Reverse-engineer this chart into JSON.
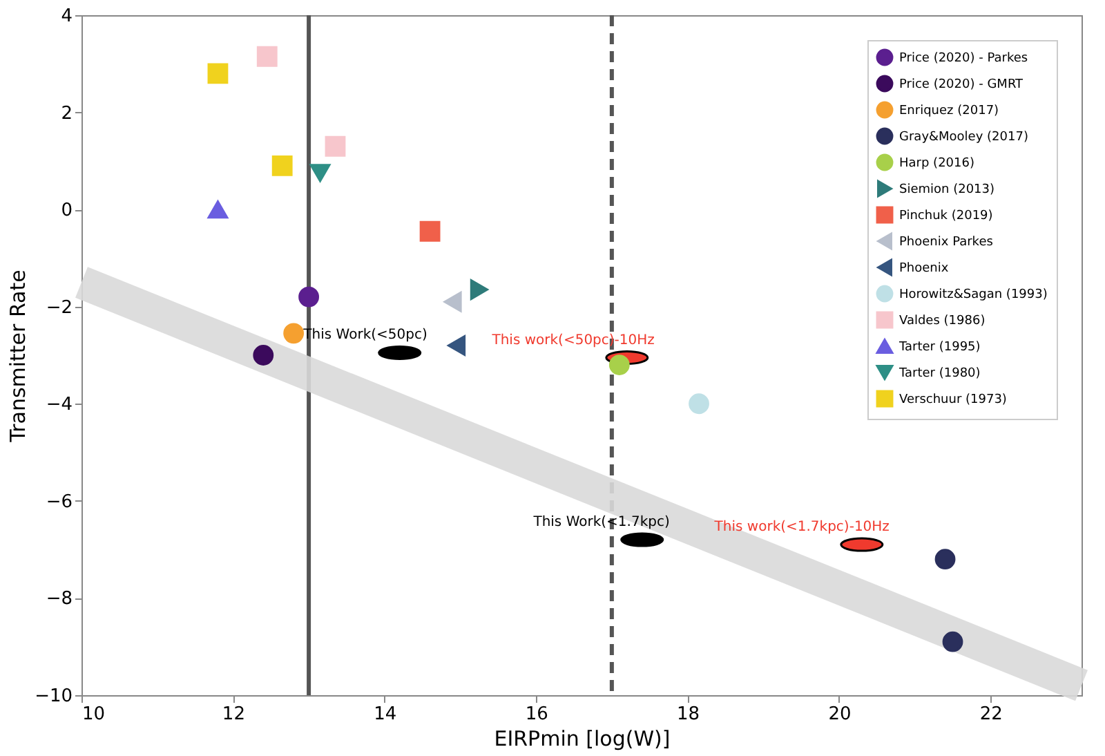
{
  "chart_data": {
    "type": "scatter",
    "xlabel": "EIRPmin [log(W)]",
    "ylabel": "Transmitter Rate",
    "xlim": [
      10,
      23.2
    ],
    "ylim": [
      -10,
      4
    ],
    "xticks": [
      10,
      12,
      14,
      16,
      18,
      20,
      22
    ],
    "yticks": [
      -10,
      -8,
      -6,
      -4,
      -2,
      0,
      2,
      4
    ],
    "grid": false,
    "legend": "top right",
    "ref_lines": [
      {
        "axis": "x",
        "value": 13,
        "color": "#555555",
        "line_style": "solid"
      },
      {
        "axis": "x",
        "value": 17,
        "color": "#555555",
        "line_style": "dashed"
      }
    ],
    "series": [
      {
        "type": "line",
        "color": "#d9d9d9",
        "x": [
          10,
          23.2
        ],
        "values": [
          -1.5,
          -9.8
        ],
        "marker": "none"
      },
      {
        "name": "Price (2020) - Parkes",
        "color": "#5b1f8f",
        "marker": "circle",
        "x": [
          13.0
        ],
        "values": [
          -1.8
        ]
      },
      {
        "name": "Price (2020) - GMRT",
        "color": "#3b0a5c",
        "marker": "circle",
        "x": [
          12.4
        ],
        "values": [
          -3.0
        ]
      },
      {
        "name": "Enriquez (2017)",
        "color": "#f5a030",
        "marker": "circle",
        "x": [
          12.8
        ],
        "values": [
          -2.55
        ]
      },
      {
        "name": "Gray&Mooley (2017)",
        "color": "#2a2f5c",
        "marker": "circle",
        "x": [
          21.4,
          21.5
        ],
        "values": [
          -7.2,
          -8.9
        ]
      },
      {
        "name": "Harp (2016)",
        "color": "#a8d04a",
        "marker": "circle",
        "x": [
          17.1
        ],
        "values": [
          -3.2
        ]
      },
      {
        "name": "Siemion (2013)",
        "color": "#2e7b7a",
        "marker": "triangle-right",
        "x": [
          15.25
        ],
        "values": [
          -1.65
        ]
      },
      {
        "name": "Pinchuk (2019)",
        "color": "#f0604a",
        "marker": "square",
        "x": [
          14.6
        ],
        "values": [
          -0.45
        ]
      },
      {
        "name": "Phoenix Parkes",
        "color": "#b8bfcc",
        "marker": "triangle-left",
        "x": [
          14.9
        ],
        "values": [
          -1.9
        ]
      },
      {
        "name": "Phoenix",
        "color": "#35557f",
        "marker": "triangle-left",
        "x": [
          14.95
        ],
        "values": [
          -2.8
        ]
      },
      {
        "name": "Horowitz&Sagan (1993)",
        "color": "#bfe0e6",
        "marker": "circle",
        "x": [
          18.15
        ],
        "values": [
          -4.0
        ]
      },
      {
        "name": "Valdes (1986)",
        "color": "#f7c6cc",
        "marker": "square",
        "x": [
          12.45,
          13.35
        ],
        "values": [
          3.15,
          1.3
        ]
      },
      {
        "name": "Tarter (1995)",
        "color": "#6a5de0",
        "marker": "triangle-up",
        "x": [
          11.8
        ],
        "values": [
          0.0
        ]
      },
      {
        "name": "Tarter (1980)",
        "color": "#2e8f86",
        "marker": "triangle-down",
        "x": [
          13.15
        ],
        "values": [
          0.75
        ]
      },
      {
        "name": "Verschuur (1973)",
        "color": "#f0d21e",
        "marker": "square",
        "x": [
          11.8,
          12.65
        ],
        "values": [
          2.8,
          0.9
        ]
      },
      {
        "name": "This Work(<50pc)",
        "color": "#000000",
        "x": [
          14.2
        ],
        "values": [
          -2.95
        ]
      },
      {
        "name": "This work(<50pc)-10Hz",
        "color": "#f03a2e",
        "x": [
          17.2
        ],
        "values": [
          -3.05
        ]
      },
      {
        "name": "This Work(<1.7kpc)",
        "color": "#000000",
        "x": [
          17.4
        ],
        "values": [
          -6.8
        ]
      },
      {
        "name": "This work(<1.7kpc)-10Hz",
        "color": "#f03a2e",
        "x": [
          20.3
        ],
        "values": [
          -6.9
        ]
      }
    ]
  }
}
